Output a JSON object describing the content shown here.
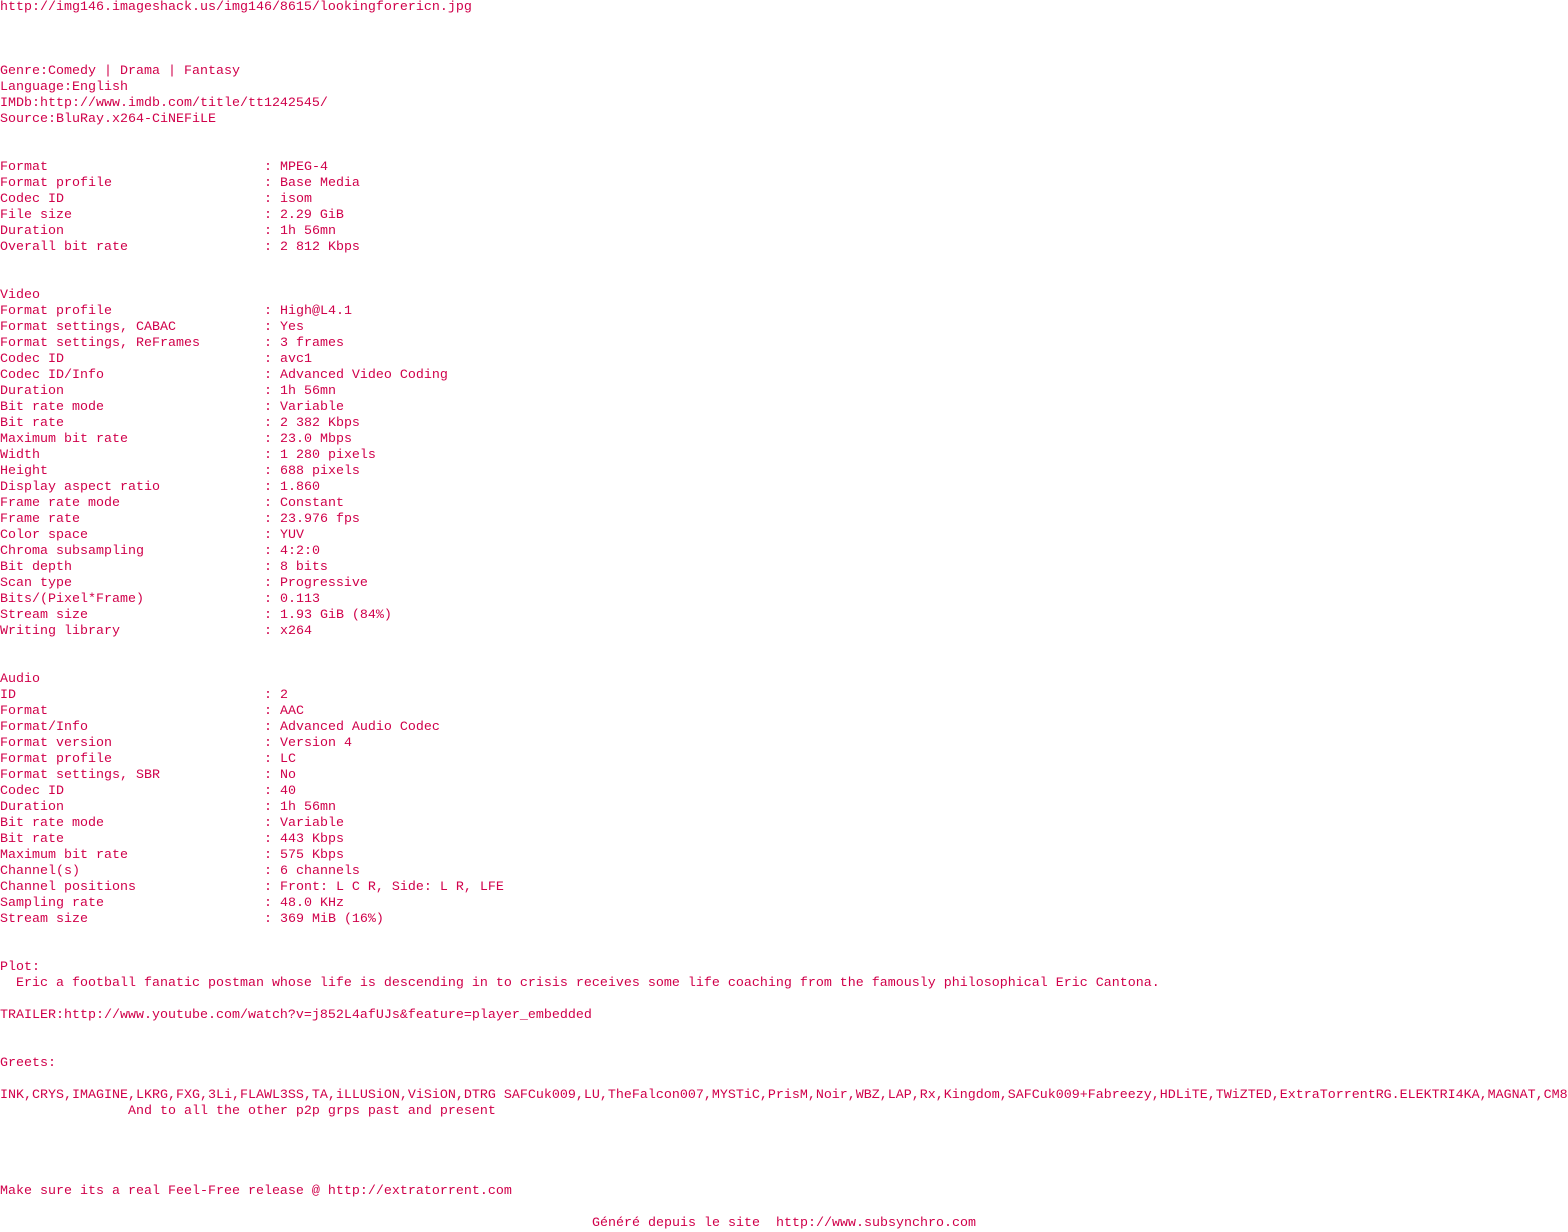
{
  "colors": {
    "text": "#d0004a",
    "background": "#ffffff"
  },
  "header": {
    "image_url": "http://img146.imageshack.us/img146/8615/lookingforericn.jpg",
    "genre": "Genre:Comedy | Drama | Fantasy",
    "language": "Language:English",
    "imdb": "IMDb:http://www.imdb.com/title/tt1242545/",
    "source": "Source:BluRay.x264-CiNEFiLE"
  },
  "general": [
    [
      "Format",
      "MPEG-4"
    ],
    [
      "Format profile",
      "Base Media"
    ],
    [
      "Codec ID",
      "isom"
    ],
    [
      "File size",
      "2.29 GiB"
    ],
    [
      "Duration",
      "1h 56mn"
    ],
    [
      "Overall bit rate",
      "2 812 Kbps"
    ]
  ],
  "video": {
    "title": "Video",
    "fields": [
      [
        "Format profile",
        "High@L4.1"
      ],
      [
        "Format settings, CABAC",
        "Yes"
      ],
      [
        "Format settings, ReFrames",
        "3 frames"
      ],
      [
        "Codec ID",
        "avc1"
      ],
      [
        "Codec ID/Info",
        "Advanced Video Coding"
      ],
      [
        "Duration",
        "1h 56mn"
      ],
      [
        "Bit rate mode",
        "Variable"
      ],
      [
        "Bit rate",
        "2 382 Kbps"
      ],
      [
        "Maximum bit rate",
        "23.0 Mbps"
      ],
      [
        "Width",
        "1 280 pixels"
      ],
      [
        "Height",
        "688 pixels"
      ],
      [
        "Display aspect ratio",
        "1.860"
      ],
      [
        "Frame rate mode",
        "Constant"
      ],
      [
        "Frame rate",
        "23.976 fps"
      ],
      [
        "Color space",
        "YUV"
      ],
      [
        "Chroma subsampling",
        "4:2:0"
      ],
      [
        "Bit depth",
        "8 bits"
      ],
      [
        "Scan type",
        "Progressive"
      ],
      [
        "Bits/(Pixel*Frame)",
        "0.113"
      ],
      [
        "Stream size",
        "1.93 GiB (84%)"
      ],
      [
        "Writing library",
        "x264"
      ]
    ]
  },
  "audio": {
    "title": "Audio",
    "fields": [
      [
        "ID",
        "2"
      ],
      [
        "Format",
        "AAC"
      ],
      [
        "Format/Info",
        "Advanced Audio Codec"
      ],
      [
        "Format version",
        "Version 4"
      ],
      [
        "Format profile",
        "LC"
      ],
      [
        "Format settings, SBR",
        "No"
      ],
      [
        "Codec ID",
        "40"
      ],
      [
        "Duration",
        "1h 56mn"
      ],
      [
        "Bit rate mode",
        "Variable"
      ],
      [
        "Bit rate",
        "443 Kbps"
      ],
      [
        "Maximum bit rate",
        "575 Kbps"
      ],
      [
        "Channel(s)",
        "6 channels"
      ],
      [
        "Channel positions",
        "Front: L C R, Side: L R, LFE"
      ],
      [
        "Sampling rate",
        "48.0 KHz"
      ],
      [
        "Stream size",
        "369 MiB (16%)"
      ]
    ]
  },
  "plot": {
    "label": "Plot:",
    "text": "  Eric a football fanatic postman whose life is descending in to crisis receives some life coaching from the famously philosophical Eric Cantona."
  },
  "trailer": "TRAILER:http://www.youtube.com/watch?v=j852L4afUJs&feature=player_embedded",
  "greets": {
    "label": "Greets:",
    "groups": "INK,CRYS,IMAGINE,LKRG,FXG,3Li,FLAWL3SS,TA,iLLUSiON,ViSiON,DTRG SAFCuk009,LU,TheFalcon007,MYSTiC,PrisM,Noir,WBZ,LAP,Rx,Kingdom,SAFCuk009+Fabreezy,HDLiTE,TWiZTED,ExtraTorrentRG.ELEKTRI4KA,MAGNAT,CM8",
    "others": "                And to all the other p2p grps past and present"
  },
  "release_note": "Make sure its a real Feel-Free release @ http://extratorrent.com",
  "footer": "Généré depuis le site  http://www.subsynchro.com"
}
